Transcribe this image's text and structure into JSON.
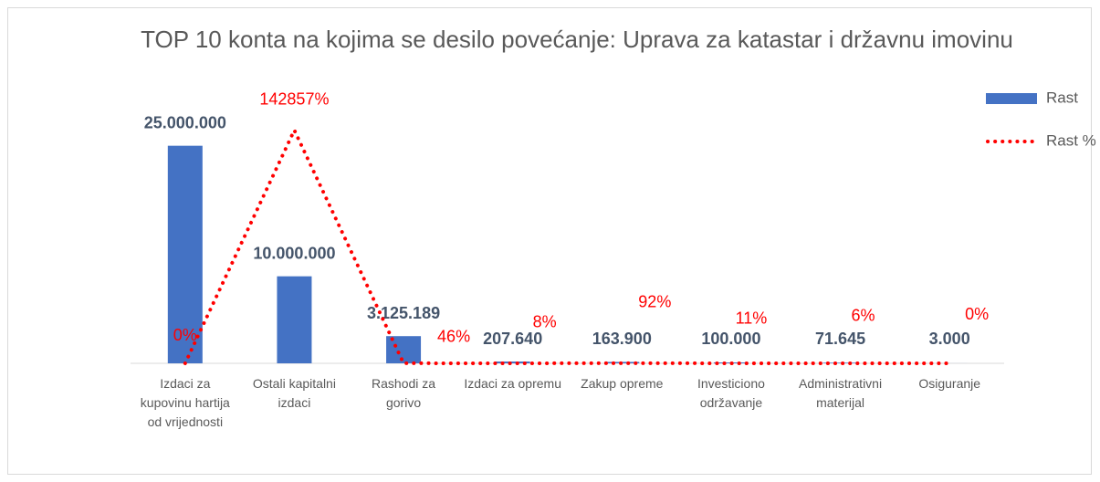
{
  "chart_data": {
    "type": "bar-line",
    "title": "TOP 10 konta na kojima se desilo povećanje: Uprava za katastar i državnu imovinu",
    "categories": [
      "Izdaci za kupovinu hartija od vrijednosti",
      "Ostali kapitalni izdaci",
      "Rashodi za gorivo",
      "Izdaci za opremu",
      "Zakup opreme",
      "Investiciono održavanje",
      "Administrativni materijal",
      "Osiguranje"
    ],
    "series": [
      {
        "name": "Rast",
        "type": "bar",
        "color": "#4472c4",
        "values": [
          25000000,
          10000000,
          3125189,
          207640,
          163900,
          100000,
          71645,
          3000
        ],
        "value_labels": [
          "25.000.000",
          "10.000.000",
          "3.125.189",
          "207.640",
          "163.900",
          "100.000",
          "71.645",
          "3.000"
        ]
      },
      {
        "name": "Rast %",
        "type": "line",
        "axis": "y2",
        "color": "#ff0000",
        "values": [
          0,
          142857,
          46,
          8,
          92,
          11,
          6,
          0
        ],
        "value_labels": [
          "0%",
          "142857%",
          "46%",
          "8%",
          "92%",
          "11%",
          "6%",
          "0%"
        ]
      }
    ],
    "ylim": [
      0,
      30000000
    ],
    "y2lim": [
      0,
      160000
    ],
    "legend": "right"
  }
}
